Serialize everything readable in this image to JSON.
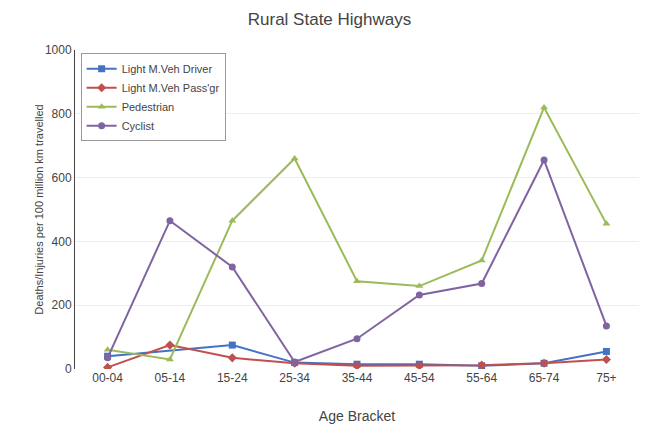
{
  "chart_data": {
    "type": "line",
    "title": "Rural State Highways",
    "xlabel": "Age Bracket",
    "ylabel": "Deaths/Injuries per 100 million km travelled",
    "categories": [
      "00-04",
      "05-14",
      "15-24",
      "25-34",
      "35-44",
      "45-54",
      "55-64",
      "65-74",
      "75+"
    ],
    "series": [
      {
        "name": "Light M.Veh Driver",
        "color": "#4472C4",
        "marker": "square",
        "values": [
          40,
          null,
          75,
          20,
          15,
          15,
          10,
          18,
          55
        ]
      },
      {
        "name": "Light M.Veh Pass'gr",
        "color": "#C0504D",
        "marker": "diamond",
        "values": [
          5,
          75,
          35,
          18,
          10,
          10,
          12,
          18,
          30
        ]
      },
      {
        "name": "Pedestrian",
        "color": "#9BBB59",
        "marker": "triangle-up",
        "values": [
          60,
          30,
          465,
          660,
          275,
          260,
          340,
          820,
          455
        ]
      },
      {
        "name": "Cyclist",
        "color": "#8064A2",
        "marker": "circle",
        "values": [
          35,
          465,
          320,
          22,
          95,
          232,
          268,
          655,
          135
        ]
      }
    ],
    "ylim": [
      0,
      1000
    ],
    "yticks": [
      0,
      200,
      400,
      600,
      800,
      1000
    ],
    "grid": true,
    "legend": "upper left"
  }
}
